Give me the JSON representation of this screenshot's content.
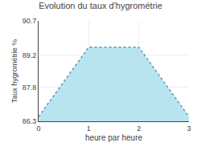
{
  "chart_data": {
    "type": "area",
    "title": "Evolution du taux d'hygrométrie",
    "xlabel": "heure par heure",
    "ylabel": "Taux hygrométrie %",
    "x": [
      0,
      1,
      2,
      3
    ],
    "series": [
      {
        "color": "#5599bb",
        "line_style": "dotted",
        "values": [
          86.5,
          89.55,
          89.55,
          86.5
        ]
      }
    ],
    "color": "#b8e4f0",
    "xlim": [
      0,
      3
    ],
    "xticks": [
      0,
      1,
      2,
      3
    ],
    "ylim": [
      86.3,
      90.7
    ],
    "yticks": [
      86.3,
      87.8,
      89.2,
      90.7
    ],
    "grid": true
  }
}
